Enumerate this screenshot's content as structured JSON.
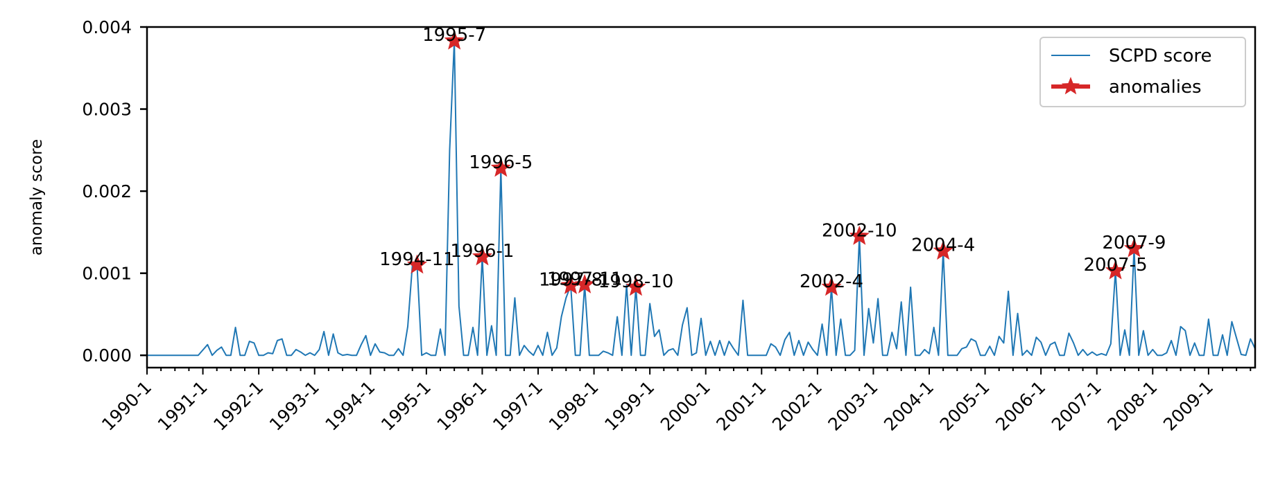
{
  "chart_data": {
    "type": "line",
    "xlabel": "",
    "ylabel": "anomaly score",
    "ylim": [
      -0.00015,
      0.004
    ],
    "xlim": [
      "1990-1",
      "2009-11"
    ],
    "grid": false,
    "legend_position": "top-right",
    "y_ticks": [
      "0.000",
      "0.001",
      "0.002",
      "0.003",
      "0.004"
    ],
    "x_ticks": [
      "1990-1",
      "1991-1",
      "1992-1",
      "1993-1",
      "1994-1",
      "1995-1",
      "1996-1",
      "1997-1",
      "1998-1",
      "1999-1",
      "2000-1",
      "2001-1",
      "2002-1",
      "2003-1",
      "2004-1",
      "2005-1",
      "2006-1",
      "2007-1",
      "2008-1",
      "2009-1"
    ],
    "series": [
      {
        "name": "SCPD score",
        "color": "#1f77b4",
        "points": [
          [
            "1990-1",
            0
          ],
          [
            "1990-12",
            0
          ],
          [
            "1991-2",
            0.00013
          ],
          [
            "1991-3",
            0
          ],
          [
            "1991-4",
            6e-05
          ],
          [
            "1991-5",
            0.0001
          ],
          [
            "1991-6",
            0
          ],
          [
            "1991-7",
            0
          ],
          [
            "1991-8",
            0.00034
          ],
          [
            "1991-9",
            0
          ],
          [
            "1991-10",
            0
          ],
          [
            "1991-11",
            0.00017
          ],
          [
            "1991-12",
            0.00015
          ],
          [
            "1992-1",
            0
          ],
          [
            "1992-2",
            0
          ],
          [
            "1992-3",
            3e-05
          ],
          [
            "1992-4",
            2e-05
          ],
          [
            "1992-5",
            0.00018
          ],
          [
            "1992-6",
            0.0002
          ],
          [
            "1992-7",
            0
          ],
          [
            "1992-8",
            0
          ],
          [
            "1992-9",
            7e-05
          ],
          [
            "1992-10",
            4e-05
          ],
          [
            "1992-11",
            0
          ],
          [
            "1992-12",
            3e-05
          ],
          [
            "1993-1",
            0
          ],
          [
            "1993-2",
            7e-05
          ],
          [
            "1993-3",
            0.00029
          ],
          [
            "1993-4",
            0
          ],
          [
            "1993-5",
            0.00026
          ],
          [
            "1993-6",
            3e-05
          ],
          [
            "1993-7",
            0
          ],
          [
            "1993-8",
            1e-05
          ],
          [
            "1993-9",
            0
          ],
          [
            "1993-10",
            0
          ],
          [
            "1993-11",
            0.00013
          ],
          [
            "1993-12",
            0.00024
          ],
          [
            "1994-1",
            0
          ],
          [
            "1994-2",
            0.00014
          ],
          [
            "1994-3",
            4e-05
          ],
          [
            "1994-4",
            3e-05
          ],
          [
            "1994-5",
            0
          ],
          [
            "1994-6",
            0
          ],
          [
            "1994-7",
            8e-05
          ],
          [
            "1994-8",
            0
          ],
          [
            "1994-9",
            0.00035
          ],
          [
            "1994-10",
            0.0011
          ],
          [
            "1994-11",
            0.0011
          ],
          [
            "1994-12",
            0
          ],
          [
            "1995-1",
            3e-05
          ],
          [
            "1995-2",
            0
          ],
          [
            "1995-3",
            0
          ],
          [
            "1995-4",
            0.00032
          ],
          [
            "1995-5",
            0
          ],
          [
            "1995-6",
            0.0025
          ],
          [
            "1995-7",
            0.00383
          ],
          [
            "1995-8",
            0.0006
          ],
          [
            "1995-9",
            0
          ],
          [
            "1995-10",
            0
          ],
          [
            "1995-11",
            0.00034
          ],
          [
            "1995-12",
            0
          ],
          [
            "1996-1",
            0.0012
          ],
          [
            "1996-2",
            0
          ],
          [
            "1996-3",
            0.00036
          ],
          [
            "1996-4",
            0
          ],
          [
            "1996-5",
            0.00228
          ],
          [
            "1996-6",
            0
          ],
          [
            "1996-7",
            0
          ],
          [
            "1996-8",
            0.0007
          ],
          [
            "1996-9",
            0
          ],
          [
            "1996-10",
            0.00012
          ],
          [
            "1996-11",
            5e-05
          ],
          [
            "1996-12",
            0
          ],
          [
            "1997-1",
            0.00012
          ],
          [
            "1997-2",
            0
          ],
          [
            "1997-3",
            0.00028
          ],
          [
            "1997-4",
            0
          ],
          [
            "1997-5",
            9e-05
          ],
          [
            "1997-6",
            0.00047
          ],
          [
            "1997-7",
            0.0007
          ],
          [
            "1997-8",
            0.00085
          ],
          [
            "1997-9",
            0
          ],
          [
            "1997-10",
            0
          ],
          [
            "1997-11",
            0.00086
          ],
          [
            "1997-12",
            0
          ],
          [
            "1998-1",
            0
          ],
          [
            "1998-2",
            0
          ],
          [
            "1998-3",
            5e-05
          ],
          [
            "1998-4",
            3e-05
          ],
          [
            "1998-5",
            0
          ],
          [
            "1998-6",
            0.00047
          ],
          [
            "1998-7",
            0
          ],
          [
            "1998-8",
            0.00086
          ],
          [
            "1998-9",
            0
          ],
          [
            "1998-10",
            0.00083
          ],
          [
            "1998-11",
            0
          ],
          [
            "1998-12",
            0
          ],
          [
            "1999-1",
            0.00063
          ],
          [
            "1999-2",
            0.00023
          ],
          [
            "1999-3",
            0.00031
          ],
          [
            "1999-4",
            0
          ],
          [
            "1999-5",
            6e-05
          ],
          [
            "1999-6",
            8e-05
          ],
          [
            "1999-7",
            0
          ],
          [
            "1999-8",
            0.00037
          ],
          [
            "1999-9",
            0.00058
          ],
          [
            "1999-10",
            0
          ],
          [
            "1999-11",
            3e-05
          ],
          [
            "1999-12",
            0.00045
          ],
          [
            "2000-1",
            0
          ],
          [
            "2000-2",
            0.00017
          ],
          [
            "2000-3",
            0
          ],
          [
            "2000-4",
            0.00018
          ],
          [
            "2000-5",
            0
          ],
          [
            "2000-6",
            0.00017
          ],
          [
            "2000-7",
            8e-05
          ],
          [
            "2000-8",
            0
          ],
          [
            "2000-9",
            0.00067
          ],
          [
            "2000-10",
            0
          ],
          [
            "2000-11",
            0
          ],
          [
            "2000-12",
            0
          ],
          [
            "2001-1",
            0
          ],
          [
            "2001-2",
            0
          ],
          [
            "2001-3",
            0.00014
          ],
          [
            "2001-4",
            0.0001
          ],
          [
            "2001-5",
            0
          ],
          [
            "2001-6",
            0.00019
          ],
          [
            "2001-7",
            0.00028
          ],
          [
            "2001-8",
            0
          ],
          [
            "2001-9",
            0.00018
          ],
          [
            "2001-10",
            0
          ],
          [
            "2001-11",
            0.00016
          ],
          [
            "2001-12",
            7e-05
          ],
          [
            "2002-1",
            0
          ],
          [
            "2002-2",
            0.00038
          ],
          [
            "2002-3",
            0
          ],
          [
            "2002-4",
            0.00083
          ],
          [
            "2002-5",
            0
          ],
          [
            "2002-6",
            0.00044
          ],
          [
            "2002-7",
            0
          ],
          [
            "2002-8",
            0
          ],
          [
            "2002-9",
            6e-05
          ],
          [
            "2002-10",
            0.00145
          ],
          [
            "2002-11",
            0
          ],
          [
            "2002-12",
            0.00057
          ],
          [
            "2003-1",
            0.00015
          ],
          [
            "2003-2",
            0.00069
          ],
          [
            "2003-3",
            0
          ],
          [
            "2003-4",
            0
          ],
          [
            "2003-5",
            0.00028
          ],
          [
            "2003-6",
            8e-05
          ],
          [
            "2003-7",
            0.00065
          ],
          [
            "2003-8",
            0
          ],
          [
            "2003-9",
            0.00083
          ],
          [
            "2003-10",
            0
          ],
          [
            "2003-11",
            0
          ],
          [
            "2003-12",
            7e-05
          ],
          [
            "2004-1",
            2e-05
          ],
          [
            "2004-2",
            0.00034
          ],
          [
            "2004-3",
            0
          ],
          [
            "2004-4",
            0.00127
          ],
          [
            "2004-5",
            0
          ],
          [
            "2004-6",
            0
          ],
          [
            "2004-7",
            0
          ],
          [
            "2004-8",
            8e-05
          ],
          [
            "2004-9",
            0.0001
          ],
          [
            "2004-10",
            0.0002
          ],
          [
            "2004-11",
            0.00017
          ],
          [
            "2004-12",
            0
          ],
          [
            "2005-1",
            0
          ],
          [
            "2005-2",
            0.00011
          ],
          [
            "2005-3",
            0
          ],
          [
            "2005-4",
            0.00023
          ],
          [
            "2005-5",
            0.00015
          ],
          [
            "2005-6",
            0.00078
          ],
          [
            "2005-7",
            0
          ],
          [
            "2005-8",
            0.00051
          ],
          [
            "2005-9",
            0
          ],
          [
            "2005-10",
            6e-05
          ],
          [
            "2005-11",
            0
          ],
          [
            "2005-12",
            0.00022
          ],
          [
            "2006-1",
            0.00016
          ],
          [
            "2006-2",
            0
          ],
          [
            "2006-3",
            0.00013
          ],
          [
            "2006-4",
            0.00016
          ],
          [
            "2006-5",
            0
          ],
          [
            "2006-6",
            0
          ],
          [
            "2006-7",
            0.00027
          ],
          [
            "2006-8",
            0.00015
          ],
          [
            "2006-9",
            0
          ],
          [
            "2006-10",
            7e-05
          ],
          [
            "2006-11",
            0
          ],
          [
            "2006-12",
            4e-05
          ],
          [
            "2007-1",
            0
          ],
          [
            "2007-2",
            2e-05
          ],
          [
            "2007-3",
            0
          ],
          [
            "2007-4",
            0.00014
          ],
          [
            "2007-5",
            0.00103
          ],
          [
            "2007-6",
            0
          ],
          [
            "2007-7",
            0.00031
          ],
          [
            "2007-8",
            0
          ],
          [
            "2007-9",
            0.0013
          ],
          [
            "2007-10",
            0
          ],
          [
            "2007-11",
            0.0003
          ],
          [
            "2007-12",
            0
          ],
          [
            "2008-1",
            7e-05
          ],
          [
            "2008-2",
            0
          ],
          [
            "2008-3",
            0
          ],
          [
            "2008-4",
            3e-05
          ],
          [
            "2008-5",
            0.00018
          ],
          [
            "2008-6",
            0
          ],
          [
            "2008-7",
            0.00035
          ],
          [
            "2008-8",
            0.0003
          ],
          [
            "2008-9",
            0
          ],
          [
            "2008-10",
            0.00015
          ],
          [
            "2008-11",
            0
          ],
          [
            "2008-12",
            0
          ],
          [
            "2009-1",
            0.00044
          ],
          [
            "2009-2",
            0
          ],
          [
            "2009-3",
            0
          ],
          [
            "2009-4",
            0.00025
          ],
          [
            "2009-5",
            0
          ],
          [
            "2009-6",
            0.00041
          ],
          [
            "2009-7",
            0.00021
          ],
          [
            "2009-8",
            1e-05
          ],
          [
            "2009-9",
            0
          ],
          [
            "2009-10",
            0.0002
          ],
          [
            "2009-11",
            8e-05
          ]
        ]
      },
      {
        "name": "anomalies",
        "color": "#d62728",
        "marker": "star",
        "points": [
          [
            "1994-11",
            0.0011
          ],
          [
            "1995-7",
            0.00383
          ],
          [
            "1996-1",
            0.0012
          ],
          [
            "1996-5",
            0.00228
          ],
          [
            "1997-8",
            0.00085
          ],
          [
            "1997-11",
            0.00086
          ],
          [
            "1998-10",
            0.00083
          ],
          [
            "2002-4",
            0.00083
          ],
          [
            "2002-10",
            0.00145
          ],
          [
            "2004-4",
            0.00127
          ],
          [
            "2007-5",
            0.00103
          ],
          [
            "2007-9",
            0.0013
          ]
        ]
      }
    ],
    "annotations": [
      {
        "text": "1994-11",
        "x": "1994-11",
        "y": 0.0011
      },
      {
        "text": "1995-7",
        "x": "1995-7",
        "y": 0.00383
      },
      {
        "text": "1996-1",
        "x": "1996-1",
        "y": 0.0012
      },
      {
        "text": "1996-5",
        "x": "1996-5",
        "y": 0.00228
      },
      {
        "text": "1997-8",
        "x": "1997-8",
        "y": 0.00085
      },
      {
        "text": "1997-11",
        "x": "1997-11",
        "y": 0.00086
      },
      {
        "text": "1998-10",
        "x": "1998-10",
        "y": 0.00083
      },
      {
        "text": "2002-4",
        "x": "2002-4",
        "y": 0.00083
      },
      {
        "text": "2002-10",
        "x": "2002-10",
        "y": 0.00145
      },
      {
        "text": "2004-4",
        "x": "2004-4",
        "y": 0.00127
      },
      {
        "text": "2007-5",
        "x": "2007-5",
        "y": 0.00103
      },
      {
        "text": "2007-9",
        "x": "2007-9",
        "y": 0.0013
      }
    ]
  }
}
